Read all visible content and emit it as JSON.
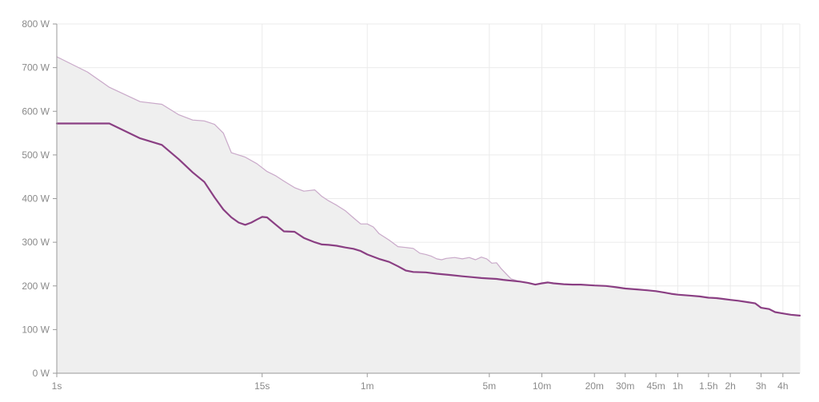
{
  "chart_data": {
    "type": "area",
    "x_scale": "log",
    "y_unit": "W",
    "ylim": [
      0,
      800
    ],
    "xlim_seconds": [
      1,
      18000
    ],
    "y_ticks": [
      {
        "value": 0,
        "label": "0 W"
      },
      {
        "value": 100,
        "label": "100 W"
      },
      {
        "value": 200,
        "label": "200 W"
      },
      {
        "value": 300,
        "label": "300 W"
      },
      {
        "value": 400,
        "label": "400 W"
      },
      {
        "value": 500,
        "label": "500 W"
      },
      {
        "value": 600,
        "label": "600 W"
      },
      {
        "value": 700,
        "label": "700 W"
      },
      {
        "value": 800,
        "label": "800 W"
      }
    ],
    "x_ticks": [
      {
        "value": 1,
        "label": "1s"
      },
      {
        "value": 15,
        "label": "15s"
      },
      {
        "value": 60,
        "label": "1m"
      },
      {
        "value": 300,
        "label": "5m"
      },
      {
        "value": 600,
        "label": "10m"
      },
      {
        "value": 1200,
        "label": "20m"
      },
      {
        "value": 1800,
        "label": "30m"
      },
      {
        "value": 2700,
        "label": "45m"
      },
      {
        "value": 3600,
        "label": "1h"
      },
      {
        "value": 5400,
        "label": "1.5h"
      },
      {
        "value": 7200,
        "label": "2h"
      },
      {
        "value": 10800,
        "label": "3h"
      },
      {
        "value": 14400,
        "label": "4h"
      }
    ],
    "grid": true,
    "series": [
      {
        "role": "best",
        "color": "#c9a9c9",
        "fill": "#efefef",
        "points": [
          [
            1,
            725
          ],
          [
            1.5,
            690
          ],
          [
            2,
            655
          ],
          [
            3,
            622
          ],
          [
            4,
            616
          ],
          [
            5,
            592
          ],
          [
            6,
            580
          ],
          [
            7,
            578
          ],
          [
            8,
            570
          ],
          [
            9,
            550
          ],
          [
            10,
            505
          ],
          [
            12,
            495
          ],
          [
            14,
            480
          ],
          [
            16,
            462
          ],
          [
            18,
            452
          ],
          [
            20,
            440
          ],
          [
            23,
            425
          ],
          [
            26,
            417
          ],
          [
            30,
            420
          ],
          [
            33,
            405
          ],
          [
            36,
            395
          ],
          [
            40,
            385
          ],
          [
            45,
            372
          ],
          [
            50,
            356
          ],
          [
            55,
            342
          ],
          [
            60,
            342
          ],
          [
            65,
            335
          ],
          [
            70,
            320
          ],
          [
            80,
            305
          ],
          [
            90,
            290
          ],
          [
            100,
            288
          ],
          [
            110,
            286
          ],
          [
            120,
            275
          ],
          [
            130,
            272
          ],
          [
            140,
            268
          ],
          [
            150,
            262
          ],
          [
            160,
            260
          ],
          [
            170,
            263
          ],
          [
            190,
            265
          ],
          [
            210,
            262
          ],
          [
            230,
            265
          ],
          [
            250,
            260
          ],
          [
            270,
            266
          ],
          [
            290,
            262
          ],
          [
            310,
            252
          ],
          [
            330,
            253
          ],
          [
            350,
            240
          ],
          [
            380,
            225
          ],
          [
            400,
            216
          ],
          [
            450,
            210
          ],
          [
            500,
            207
          ],
          [
            550,
            203
          ],
          [
            600,
            206
          ],
          [
            650,
            208
          ],
          [
            700,
            206
          ],
          [
            800,
            204
          ],
          [
            900,
            203
          ],
          [
            1000,
            203
          ],
          [
            1200,
            201
          ],
          [
            1400,
            200
          ],
          [
            1600,
            197
          ],
          [
            1800,
            194
          ],
          [
            2100,
            192
          ],
          [
            2400,
            190
          ],
          [
            2700,
            188
          ],
          [
            3000,
            185
          ],
          [
            3300,
            182
          ],
          [
            3600,
            180
          ],
          [
            4200,
            178
          ],
          [
            4800,
            176
          ],
          [
            5400,
            173
          ],
          [
            6000,
            172
          ],
          [
            6600,
            170
          ],
          [
            7200,
            168
          ],
          [
            8000,
            166
          ],
          [
            9000,
            163
          ],
          [
            10000,
            160
          ],
          [
            10800,
            150
          ],
          [
            12000,
            147
          ],
          [
            13000,
            140
          ],
          [
            14400,
            137
          ],
          [
            16000,
            134
          ],
          [
            18000,
            132
          ]
        ]
      },
      {
        "role": "current",
        "color": "#8a3f83",
        "points": [
          [
            1,
            572
          ],
          [
            2,
            572
          ],
          [
            3,
            538
          ],
          [
            4,
            523
          ],
          [
            5,
            490
          ],
          [
            6,
            460
          ],
          [
            7,
            438
          ],
          [
            8,
            403
          ],
          [
            9,
            375
          ],
          [
            10,
            357
          ],
          [
            11,
            345
          ],
          [
            12,
            340
          ],
          [
            13,
            345
          ],
          [
            14,
            352
          ],
          [
            15,
            358
          ],
          [
            16,
            357
          ],
          [
            18,
            340
          ],
          [
            20,
            325
          ],
          [
            23,
            324
          ],
          [
            26,
            310
          ],
          [
            30,
            300
          ],
          [
            33,
            295
          ],
          [
            36,
            294
          ],
          [
            40,
            292
          ],
          [
            45,
            288
          ],
          [
            50,
            285
          ],
          [
            55,
            280
          ],
          [
            60,
            272
          ],
          [
            70,
            262
          ],
          [
            80,
            255
          ],
          [
            90,
            245
          ],
          [
            100,
            235
          ],
          [
            110,
            232
          ],
          [
            130,
            231
          ],
          [
            150,
            228
          ],
          [
            180,
            225
          ],
          [
            210,
            222
          ],
          [
            240,
            220
          ],
          [
            270,
            218
          ],
          [
            300,
            217
          ],
          [
            330,
            216
          ],
          [
            360,
            214
          ],
          [
            400,
            212
          ],
          [
            450,
            210
          ],
          [
            500,
            207
          ],
          [
            550,
            203
          ],
          [
            600,
            206
          ],
          [
            650,
            208
          ],
          [
            700,
            206
          ],
          [
            800,
            204
          ],
          [
            900,
            203
          ],
          [
            1000,
            203
          ],
          [
            1200,
            201
          ],
          [
            1400,
            200
          ],
          [
            1600,
            197
          ],
          [
            1800,
            194
          ],
          [
            2100,
            192
          ],
          [
            2400,
            190
          ],
          [
            2700,
            188
          ],
          [
            3000,
            185
          ],
          [
            3300,
            182
          ],
          [
            3600,
            180
          ],
          [
            4200,
            178
          ],
          [
            4800,
            176
          ],
          [
            5400,
            173
          ],
          [
            6000,
            172
          ],
          [
            6600,
            170
          ],
          [
            7200,
            168
          ],
          [
            8000,
            166
          ],
          [
            9000,
            163
          ],
          [
            10000,
            160
          ],
          [
            10800,
            150
          ],
          [
            12000,
            147
          ],
          [
            13000,
            140
          ],
          [
            14400,
            137
          ],
          [
            16000,
            134
          ],
          [
            18000,
            132
          ]
        ]
      }
    ]
  }
}
